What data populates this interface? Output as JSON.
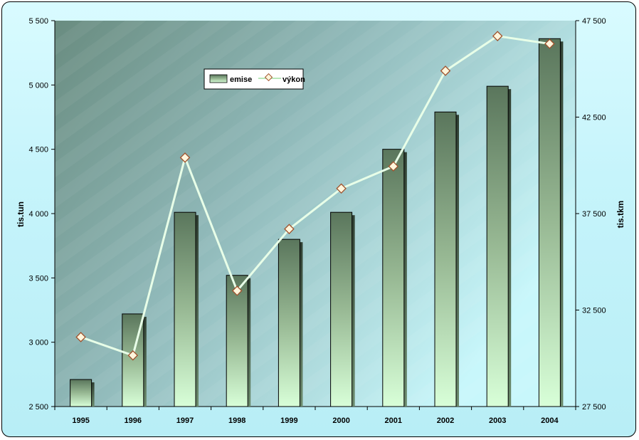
{
  "chart_data": {
    "type": "bar",
    "categories": [
      "1995",
      "1996",
      "1997",
      "1998",
      "1999",
      "2000",
      "2001",
      "2002",
      "2003",
      "2004"
    ],
    "series": [
      {
        "name": "emise",
        "type": "bar",
        "axis": "left",
        "values": [
          2710,
          3220,
          4010,
          3520,
          3800,
          4010,
          4500,
          4790,
          4990,
          5360
        ]
      },
      {
        "name": "výkon",
        "type": "line",
        "axis": "right",
        "values": [
          31100,
          30150,
          40400,
          33500,
          36700,
          38800,
          39950,
          44900,
          46700,
          46300
        ]
      }
    ],
    "ylabel": "tis.tun",
    "ylabel_right": "tis.tkm",
    "ylim": [
      2500,
      5500
    ],
    "ylim_right": [
      27500,
      47500
    ],
    "yticks": [
      "2 500",
      "3 000",
      "3 500",
      "4 000",
      "4 500",
      "5 000",
      "5 500"
    ],
    "yticks_right": [
      "27 500",
      "32 500",
      "37 500",
      "42 500",
      "47 500"
    ],
    "legend_position": "top-left",
    "grid": false,
    "colors": {
      "bar_top": "#5c7a5e",
      "bar_bottom": "#d4ffd6",
      "line": "#e6ffe6",
      "marker_fill": "#fff6dc",
      "marker_edge": "#a0522d"
    }
  }
}
